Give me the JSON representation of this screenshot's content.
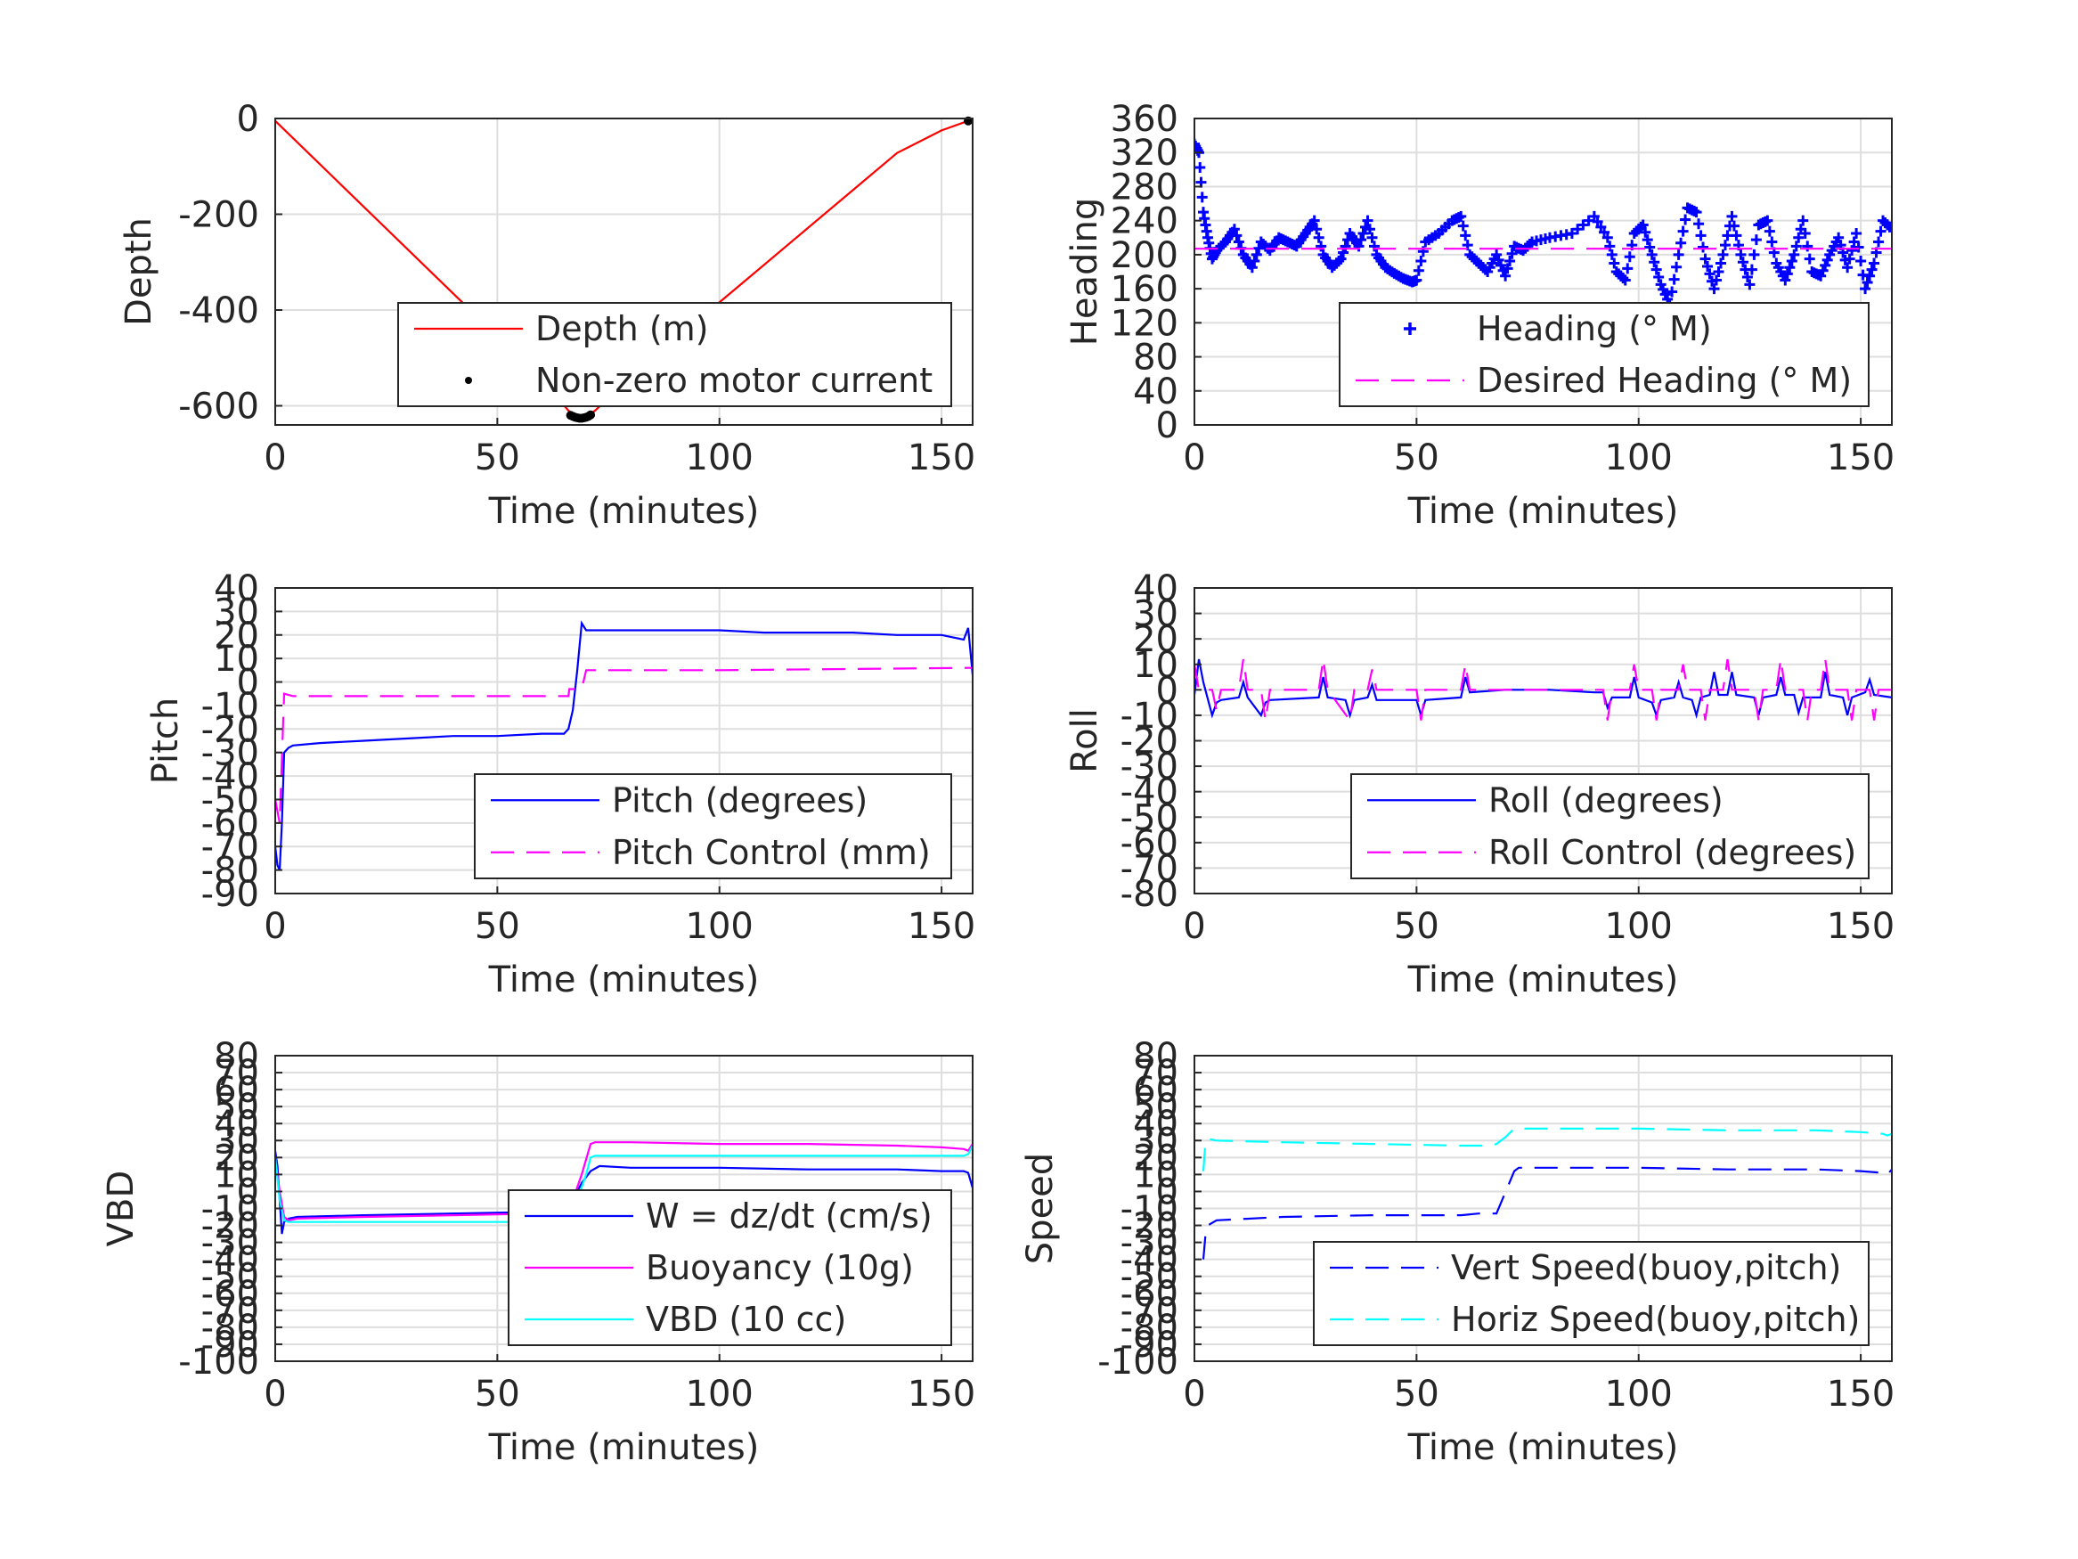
{
  "chart_data": [
    {
      "id": "depth",
      "type": "line",
      "xlabel": "Time (minutes)",
      "ylabel": "Depth",
      "xlim": [
        0,
        157
      ],
      "ylim": [
        -640,
        0
      ],
      "xticks": [
        0,
        50,
        100,
        150
      ],
      "yticks": [
        0,
        -200,
        -400,
        -600
      ],
      "legend": "bottom-right",
      "series": [
        {
          "name": "Depth (m)",
          "style": "solid",
          "color": "#ff0000",
          "x": [
            0,
            10,
            20,
            30,
            40,
            50,
            60,
            66,
            68,
            70,
            72,
            80,
            90,
            100,
            110,
            120,
            130,
            140,
            150,
            156
          ],
          "y": [
            -5,
            -95,
            -185,
            -275,
            -365,
            -455,
            -545,
            -610,
            -625,
            -625,
            -610,
            -540,
            -462,
            -384,
            -306,
            -228,
            -150,
            -72,
            -25,
            -5
          ]
        },
        {
          "name": "Non-zero motor current",
          "style": "dot",
          "color": "#000000",
          "x": [
            66.5,
            67,
            67.5,
            68,
            68.5,
            69,
            69.5,
            70,
            70.5,
            71,
            156
          ],
          "y": [
            -620,
            -622,
            -624,
            -625,
            -626,
            -626,
            -625,
            -624,
            -622,
            -619,
            -5
          ]
        }
      ]
    },
    {
      "id": "heading",
      "type": "scatter",
      "xlabel": "Time (minutes)",
      "ylabel": "Heading",
      "xlim": [
        0,
        157
      ],
      "ylim": [
        0,
        360
      ],
      "xticks": [
        0,
        50,
        100,
        150
      ],
      "yticks": [
        0,
        40,
        80,
        120,
        160,
        200,
        240,
        280,
        320,
        360
      ],
      "legend": "bottom-right",
      "series": [
        {
          "name": "Heading (° M)",
          "style": "plus",
          "color": "#0000ff",
          "x": [
            0,
            1,
            2,
            3,
            4,
            5,
            7,
            9,
            11,
            13,
            15,
            17,
            19,
            21,
            23,
            25,
            27,
            29,
            31,
            33,
            35,
            37,
            39,
            41,
            43,
            45,
            47,
            49,
            50,
            52,
            55,
            58,
            60,
            62,
            64,
            66,
            68,
            70,
            72,
            74,
            76,
            80,
            85,
            90,
            93,
            95,
            97,
            99,
            101,
            103,
            105,
            107,
            109,
            111,
            113,
            115,
            117,
            119,
            121,
            123,
            125,
            127,
            129,
            131,
            133,
            135,
            137,
            139,
            141,
            143,
            145,
            147,
            149,
            151,
            153,
            155,
            157
          ],
          "y": [
            330,
            320,
            250,
            220,
            195,
            205,
            215,
            230,
            200,
            185,
            215,
            205,
            220,
            215,
            210,
            225,
            240,
            200,
            185,
            195,
            225,
            210,
            240,
            200,
            185,
            178,
            172,
            168,
            170,
            215,
            225,
            240,
            245,
            200,
            190,
            180,
            200,
            175,
            210,
            205,
            215,
            220,
            225,
            245,
            220,
            180,
            170,
            225,
            235,
            200,
            165,
            142,
            200,
            255,
            250,
            195,
            160,
            200,
            245,
            200,
            165,
            235,
            240,
            190,
            170,
            200,
            240,
            180,
            175,
            200,
            220,
            185,
            225,
            160,
            190,
            240,
            230
          ]
        },
        {
          "name": "Desired Heading (° M)",
          "style": "dashed",
          "color": "#ff00ff",
          "x": [
            0,
            157
          ],
          "y": [
            207,
            207
          ]
        }
      ]
    },
    {
      "id": "pitch",
      "type": "line",
      "xlabel": "Time (minutes)",
      "ylabel": "Pitch",
      "xlim": [
        0,
        157
      ],
      "ylim": [
        -90,
        40
      ],
      "xticks": [
        0,
        50,
        100,
        150
      ],
      "yticks": [
        40,
        30,
        20,
        10,
        0,
        -10,
        -20,
        -30,
        -40,
        -50,
        -60,
        -70,
        -80,
        -90
      ],
      "legend": "bottom-right",
      "series": [
        {
          "name": "Pitch (degrees)",
          "style": "solid",
          "color": "#0000ff",
          "x": [
            0,
            0.5,
            1,
            1.5,
            2,
            3,
            4,
            10,
            20,
            30,
            40,
            50,
            60,
            65,
            66,
            67,
            68,
            69,
            70,
            80,
            90,
            100,
            110,
            120,
            130,
            140,
            150,
            155,
            156,
            157
          ],
          "y": [
            -70,
            -78,
            -80,
            -60,
            -30,
            -28,
            -27,
            -26,
            -25,
            -24,
            -23,
            -23,
            -22,
            -22,
            -20,
            -12,
            5,
            25,
            22,
            22,
            22,
            22,
            21,
            21,
            21,
            20,
            20,
            18,
            23,
            3
          ]
        },
        {
          "name": "Pitch Control (mm)",
          "style": "dashed",
          "color": "#ff00ff",
          "x": [
            0,
            1,
            2,
            4,
            65,
            66,
            66.2,
            69,
            70,
            71,
            100,
            156,
            157
          ],
          "y": [
            -50,
            -60,
            -5,
            -6,
            -6,
            -6,
            -3,
            -3,
            5,
            5,
            5,
            6,
            6
          ]
        }
      ]
    },
    {
      "id": "roll",
      "type": "line",
      "xlabel": "Time (minutes)",
      "ylabel": "Roll",
      "xlim": [
        0,
        157
      ],
      "ylim": [
        -80,
        40
      ],
      "xticks": [
        0,
        50,
        100,
        150
      ],
      "yticks": [
        40,
        30,
        20,
        10,
        0,
        -10,
        -20,
        -30,
        -40,
        -50,
        -60,
        -70,
        -80
      ],
      "legend": "bottom-right",
      "series": [
        {
          "name": "Roll (degrees)",
          "style": "solid",
          "color": "#0000ff",
          "x": [
            0,
            1,
            2,
            4,
            5,
            6,
            10,
            11,
            12,
            15,
            16,
            17,
            28,
            29,
            30,
            34,
            35,
            36,
            39,
            40,
            41,
            50,
            51,
            52,
            60,
            61,
            62,
            70,
            80,
            90,
            92,
            93,
            94,
            98,
            99,
            100,
            103,
            104,
            105,
            108,
            109,
            110,
            112,
            113,
            114,
            116,
            117,
            118,
            120,
            121,
            122,
            126,
            127,
            128,
            131,
            132,
            133,
            135,
            136,
            137,
            141,
            142,
            143,
            146,
            147,
            148,
            151,
            152,
            153,
            157
          ],
          "y": [
            -2,
            12,
            3,
            -10,
            -5,
            -4,
            -3,
            3,
            -3,
            -10,
            -5,
            -4,
            -3,
            5,
            -3,
            -4,
            -10,
            -4,
            -3,
            2,
            -4,
            -4,
            -10,
            -4,
            -3,
            5,
            -1,
            0,
            0,
            -1,
            -1,
            -7,
            -3,
            -3,
            5,
            -3,
            -5,
            -10,
            -4,
            -3,
            3,
            -3,
            -4,
            -10,
            -3,
            -2,
            7,
            -2,
            -2,
            7,
            -2,
            -3,
            -10,
            -3,
            -2,
            5,
            -2,
            -2,
            -9,
            -3,
            -3,
            7,
            -2,
            -3,
            -10,
            -3,
            -1,
            4,
            -2,
            -3
          ]
        },
        {
          "name": "Roll Control (degrees)",
          "style": "dashed",
          "color": "#ff00ff",
          "x": [
            0,
            1,
            2,
            4,
            5,
            6,
            10,
            11,
            12,
            15,
            16,
            17,
            28,
            29,
            30,
            35,
            36,
            39,
            40,
            41,
            50,
            51,
            52,
            60,
            61,
            62,
            92,
            93,
            94,
            98,
            99,
            100,
            103,
            104,
            105,
            109,
            110,
            111,
            114,
            115,
            116,
            119,
            120,
            121,
            126,
            127,
            128,
            131,
            132,
            133,
            137,
            138,
            139,
            141,
            142,
            143,
            147,
            148,
            149,
            152,
            153,
            154,
            157
          ],
          "y": [
            10,
            0,
            0,
            0,
            -8,
            0,
            0,
            12,
            0,
            0,
            -12,
            0,
            0,
            12,
            0,
            -12,
            0,
            0,
            8,
            0,
            0,
            -12,
            0,
            0,
            10,
            0,
            0,
            -12,
            0,
            0,
            10,
            0,
            0,
            -12,
            0,
            0,
            10,
            0,
            0,
            -12,
            0,
            0,
            12,
            0,
            0,
            -12,
            0,
            0,
            12,
            0,
            0,
            -12,
            0,
            0,
            12,
            0,
            0,
            -12,
            0,
            0,
            -12,
            0,
            0
          ]
        }
      ]
    },
    {
      "id": "vbd",
      "type": "line",
      "xlabel": "Time (minutes)",
      "ylabel": "VBD",
      "xlim": [
        0,
        157
      ],
      "ylim": [
        -100,
        80
      ],
      "xticks": [
        0,
        50,
        100,
        150
      ],
      "yticks": [
        80,
        70,
        60,
        50,
        40,
        30,
        20,
        10,
        0,
        -10,
        -20,
        -30,
        -40,
        -50,
        -60,
        -70,
        -80,
        -90,
        -100
      ],
      "ytick_labels": [
        "80",
        "70",
        "60",
        "50",
        "40",
        "30",
        "20",
        "10",
        "0",
        "-10",
        "-20",
        "-30",
        "-40",
        "-50",
        "-60",
        "-70",
        "-80",
        "-90",
        "-100"
      ],
      "legend": "bottom-right",
      "series": [
        {
          "name": "W = dz/dt (cm/s)",
          "style": "solid",
          "color": "#0000ff",
          "x": [
            0,
            0.5,
            1,
            1.5,
            2,
            3,
            5,
            20,
            40,
            60,
            65,
            67,
            69,
            71,
            73,
            80,
            100,
            120,
            140,
            150,
            155,
            156,
            157
          ],
          "y": [
            24,
            15,
            -5,
            -25,
            -18,
            -16,
            -15,
            -14,
            -13,
            -12,
            -11,
            -5,
            5,
            12,
            15,
            14,
            14,
            13,
            13,
            12,
            12,
            11,
            2
          ]
        },
        {
          "name": "Buoyancy (10g)",
          "style": "solid",
          "color": "#ff00ff",
          "x": [
            0,
            1,
            2,
            3,
            5,
            20,
            40,
            60,
            65,
            67,
            69,
            71,
            72,
            80,
            100,
            120,
            140,
            150,
            155,
            156,
            157
          ],
          "y": [
            20,
            0,
            -15,
            -17,
            -16,
            -15,
            -14,
            -13,
            -12,
            -5,
            10,
            28,
            29,
            29,
            28,
            28,
            27,
            26,
            25,
            24,
            28
          ]
        },
        {
          "name": "VBD (10 cc)",
          "style": "solid",
          "color": "#00ffff",
          "x": [
            0,
            1,
            2,
            3,
            5,
            20,
            40,
            60,
            65,
            66,
            68,
            70,
            71,
            72,
            80,
            100,
            120,
            140,
            150,
            155,
            156,
            157
          ],
          "y": [
            20,
            -5,
            -17,
            -18,
            -18,
            -18,
            -18,
            -18,
            -18,
            -17,
            -5,
            10,
            20,
            21,
            21,
            21,
            21,
            21,
            21,
            21,
            22,
            27
          ]
        }
      ]
    },
    {
      "id": "speed",
      "type": "line",
      "xlabel": "Time (minutes)",
      "ylabel": "Speed",
      "xlim": [
        0,
        157
      ],
      "ylim": [
        -100,
        80
      ],
      "xticks": [
        0,
        50,
        100,
        150
      ],
      "yticks": [
        80,
        70,
        60,
        50,
        40,
        30,
        20,
        10,
        0,
        -10,
        -20,
        -30,
        -40,
        -50,
        -60,
        -70,
        -80,
        -90,
        -100
      ],
      "ytick_labels": [
        "80",
        "70",
        "60",
        "50",
        "40",
        "30",
        "20",
        "10",
        "0",
        "-10",
        "-20",
        "-30",
        "-40",
        "-50",
        "-60",
        "-70",
        "-80",
        "-90",
        "-100"
      ],
      "legend": "bottom-right",
      "series": [
        {
          "name": "Vert Speed(buoy,pitch)",
          "style": "dashed",
          "color": "#0000ff",
          "x": [
            2,
            2.5,
            3,
            5,
            20,
            40,
            60,
            64,
            67,
            68,
            72,
            73,
            80,
            100,
            120,
            140,
            150,
            155,
            156,
            157
          ],
          "y": [
            -40,
            -25,
            -20,
            -17,
            -15,
            -14,
            -14,
            -13,
            -13,
            -13,
            12,
            14,
            14,
            14,
            13,
            13,
            12,
            11,
            10,
            13
          ]
        },
        {
          "name": "Horiz Speed(buoy,pitch)",
          "style": "dashed",
          "color": "#00ffff",
          "x": [
            2,
            2.5,
            3,
            5,
            20,
            40,
            60,
            64,
            65,
            67,
            68,
            70,
            72,
            73,
            80,
            100,
            120,
            140,
            150,
            155,
            156,
            157
          ],
          "y": [
            12,
            30,
            31,
            30,
            29,
            28,
            27,
            27,
            27,
            27,
            28,
            32,
            37,
            37,
            37,
            37,
            36,
            36,
            35,
            34,
            33,
            34
          ]
        }
      ]
    }
  ]
}
